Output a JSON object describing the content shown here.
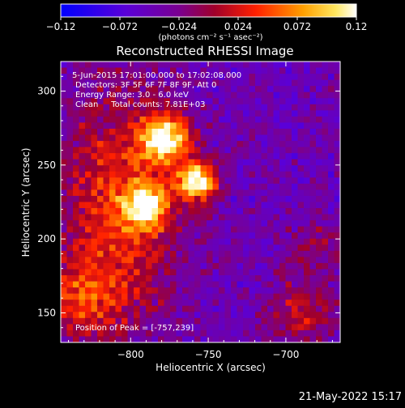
{
  "chart_data": {
    "type": "heatmap",
    "title": "Reconstructed RHESSI Image",
    "xlabel": "Heliocentric X (arcsec)",
    "ylabel": "Heliocentric Y (arcsec)",
    "xlim": [
      -845,
      -665
    ],
    "ylim": [
      130,
      320
    ],
    "x_ticks": [
      -800,
      -750,
      -700
    ],
    "y_ticks": [
      150,
      200,
      250,
      300
    ],
    "x_tick_labels": [
      "−800",
      "−750",
      "−700"
    ],
    "y_tick_labels": [
      "150",
      "200",
      "250",
      "300"
    ],
    "colorbar": {
      "min": -0.12,
      "max": 0.12,
      "ticks": [
        -0.12,
        -0.072,
        -0.024,
        0.024,
        0.072,
        0.12
      ],
      "tick_labels": [
        "−0.12",
        "−0.072",
        "−0.024",
        "0.024",
        "0.072",
        "0.12"
      ],
      "unit_label": "(photons cm⁻² s⁻¹ asec⁻²)",
      "colormap": "blue-purple-red-yellow-white"
    },
    "annotations": [
      "5-Jun-2015 17:01:00.000 to 17:02:08.000",
      "Detectors: 3F 5F 6F 7F 8F 9F, Att 0",
      "Energy Range: 3.0 - 6.0 keV",
      "Clean     Total counts: 7.81E+03"
    ],
    "peak_label": "Position of Peak = [-757,239]",
    "peak": {
      "x": -757,
      "y": 239
    },
    "sources": [
      {
        "x": -757,
        "y": 239,
        "peak": 0.12
      },
      {
        "x": -778,
        "y": 268,
        "peak": 0.1
      },
      {
        "x": -790,
        "y": 222,
        "peak": 0.075
      }
    ]
  },
  "footer": {
    "timestamp": "21-May-2022 15:17"
  },
  "colors": {
    "background": "#000000",
    "foreground": "#ffffff",
    "colormap_stops": [
      "#0000ff",
      "#7a00c0",
      "#8a0040",
      "#ff1a00",
      "#ffb000",
      "#ffffff"
    ]
  }
}
